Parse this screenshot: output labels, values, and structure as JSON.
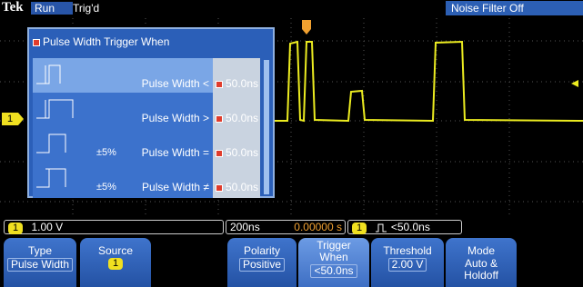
{
  "status_bar": {
    "logo": "Tek",
    "run_state": "Run",
    "trigger_state": "Trig'd",
    "noise_filter": "Noise Filter Off"
  },
  "channel_marker": "1",
  "menu": {
    "title": "Pulse Width Trigger When",
    "options": [
      {
        "label": "Pulse Width <",
        "value": "50.0ns"
      },
      {
        "label": "Pulse Width >",
        "value": "50.0ns"
      },
      {
        "tolerance": "±5%",
        "label": "Pulse Width =",
        "value": "50.0ns"
      },
      {
        "tolerance": "±5%",
        "label": "Pulse Width ≠",
        "value": "50.0ns"
      }
    ]
  },
  "readout": {
    "channel": "1",
    "scale": "1.00 V",
    "timebase": "200ns",
    "position": "0.00000 s",
    "trigger_source": "1",
    "trigger_condition": "<50.0ns"
  },
  "buttons": [
    {
      "label": "Type",
      "value": "Pulse Width"
    },
    {
      "label": "Source",
      "value": "1"
    },
    {
      "label": "Polarity",
      "value": "Positive"
    },
    {
      "label": "Trigger When",
      "value": "<50.0ns"
    },
    {
      "label": "Threshold",
      "value": "2.00 V"
    },
    {
      "label": "Mode",
      "value": "Auto & Holdoff"
    }
  ]
}
